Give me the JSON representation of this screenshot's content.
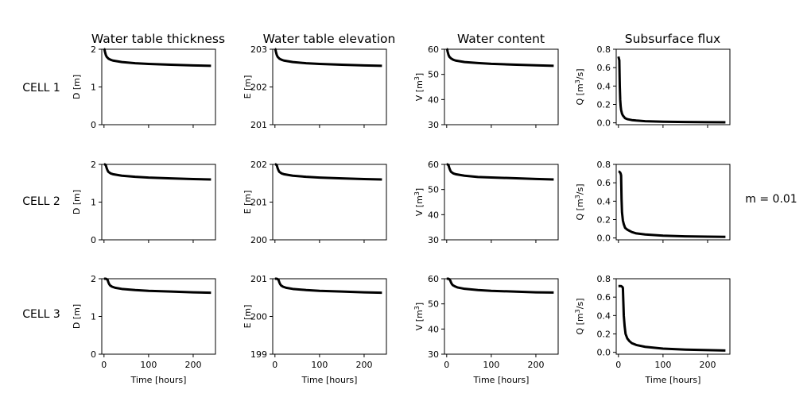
{
  "figure": {
    "column_titles": [
      "Water table thickness",
      "Water table elevation",
      "Water content",
      "Subsurface flux"
    ],
    "row_labels": [
      "CELL 1",
      "CELL 2",
      "CELL 3"
    ],
    "side_label": "m = 0.01",
    "xlabel": "Time [hours]",
    "line_color": "#000000"
  },
  "chart_data": [
    {
      "type": "line",
      "row": 1,
      "col": 1,
      "ylabel": "D [m]",
      "ylim": [
        0,
        2
      ],
      "yticks": [
        "0",
        "1",
        "2"
      ],
      "xlim": [
        -5,
        250
      ],
      "xticks": [
        "0",
        "100",
        "200"
      ],
      "series": [
        {
          "x": [
            0,
            1,
            2,
            4,
            6,
            10,
            15,
            20,
            40,
            70,
            100,
            150,
            200,
            240
          ],
          "y": [
            2.0,
            2.0,
            1.94,
            1.85,
            1.8,
            1.75,
            1.72,
            1.7,
            1.66,
            1.63,
            1.61,
            1.59,
            1.57,
            1.56
          ]
        }
      ]
    },
    {
      "type": "line",
      "row": 1,
      "col": 2,
      "ylabel": "E [m]",
      "ylim": [
        201,
        203
      ],
      "yticks": [
        "201",
        "202",
        "203"
      ],
      "xlim": [
        -5,
        250
      ],
      "xticks": [
        "0",
        "100",
        "200"
      ],
      "series": [
        {
          "x": [
            0,
            1,
            2,
            4,
            6,
            10,
            15,
            20,
            40,
            70,
            100,
            150,
            200,
            240
          ],
          "y": [
            203.0,
            203.0,
            202.94,
            202.85,
            202.8,
            202.75,
            202.72,
            202.7,
            202.66,
            202.63,
            202.61,
            202.59,
            202.57,
            202.56
          ]
        }
      ]
    },
    {
      "type": "line",
      "row": 1,
      "col": 3,
      "ylabel": "V [m$^3$]",
      "ylim": [
        30,
        60
      ],
      "yticks": [
        "30",
        "40",
        "50",
        "60"
      ],
      "xlim": [
        -5,
        250
      ],
      "xticks": [
        "0",
        "100",
        "200"
      ],
      "series": [
        {
          "x": [
            0,
            1,
            2,
            4,
            6,
            10,
            15,
            20,
            40,
            70,
            100,
            150,
            200,
            240
          ],
          "y": [
            60.0,
            60.0,
            59.1,
            57.8,
            57.0,
            56.3,
            55.8,
            55.5,
            54.9,
            54.5,
            54.2,
            53.9,
            53.6,
            53.4
          ]
        }
      ]
    },
    {
      "type": "line",
      "row": 1,
      "col": 4,
      "ylabel": "Q [m$^3$/s]",
      "ylim": [
        -0.02,
        0.8
      ],
      "yticks": [
        "0.0",
        "0.2",
        "0.4",
        "0.6",
        "0.8"
      ],
      "xlim": [
        -5,
        250
      ],
      "xticks": [
        "0",
        "100",
        "200"
      ],
      "series": [
        {
          "x": [
            0,
            1,
            2,
            3,
            4,
            5,
            6,
            8,
            10,
            15,
            20,
            30,
            40,
            60,
            100,
            150,
            200,
            240
          ],
          "y": [
            0.72,
            0.7,
            0.68,
            0.4,
            0.25,
            0.18,
            0.14,
            0.1,
            0.08,
            0.05,
            0.04,
            0.03,
            0.025,
            0.018,
            0.012,
            0.009,
            0.007,
            0.006
          ]
        }
      ]
    },
    {
      "type": "line",
      "row": 2,
      "col": 1,
      "ylabel": "D [m]",
      "ylim": [
        0,
        2
      ],
      "yticks": [
        "0",
        "1",
        "2"
      ],
      "xlim": [
        -5,
        250
      ],
      "xticks": [
        "0",
        "100",
        "200"
      ],
      "series": [
        {
          "x": [
            0,
            2,
            4,
            6,
            8,
            10,
            15,
            20,
            40,
            70,
            100,
            150,
            200,
            240
          ],
          "y": [
            2.0,
            2.0,
            1.98,
            1.9,
            1.84,
            1.8,
            1.76,
            1.74,
            1.7,
            1.67,
            1.65,
            1.63,
            1.61,
            1.6
          ]
        }
      ]
    },
    {
      "type": "line",
      "row": 2,
      "col": 2,
      "ylabel": "E [m]",
      "ylim": [
        200,
        202
      ],
      "yticks": [
        "200",
        "201",
        "202"
      ],
      "xlim": [
        -5,
        250
      ],
      "xticks": [
        "0",
        "100",
        "200"
      ],
      "series": [
        {
          "x": [
            0,
            2,
            4,
            6,
            8,
            10,
            15,
            20,
            40,
            70,
            100,
            150,
            200,
            240
          ],
          "y": [
            202.0,
            202.0,
            201.98,
            201.9,
            201.84,
            201.8,
            201.76,
            201.74,
            201.7,
            201.67,
            201.65,
            201.63,
            201.61,
            201.6
          ]
        }
      ]
    },
    {
      "type": "line",
      "row": 2,
      "col": 3,
      "ylabel": "V [m$^3$]",
      "ylim": [
        30,
        60
      ],
      "yticks": [
        "30",
        "40",
        "50",
        "60"
      ],
      "xlim": [
        -5,
        250
      ],
      "xticks": [
        "0",
        "100",
        "200"
      ],
      "series": [
        {
          "x": [
            0,
            2,
            4,
            6,
            8,
            10,
            15,
            20,
            40,
            70,
            100,
            150,
            200,
            240
          ],
          "y": [
            60.0,
            60.0,
            59.7,
            58.5,
            57.6,
            57.0,
            56.4,
            56.1,
            55.5,
            55.0,
            54.8,
            54.5,
            54.2,
            54.0
          ]
        }
      ]
    },
    {
      "type": "line",
      "row": 2,
      "col": 4,
      "ylabel": "Q [m$^3$/s]",
      "ylim": [
        -0.02,
        0.8
      ],
      "yticks": [
        "0.0",
        "0.2",
        "0.4",
        "0.6",
        "0.8"
      ],
      "xlim": [
        -5,
        250
      ],
      "xticks": [
        "0",
        "100",
        "200"
      ],
      "series": [
        {
          "x": [
            0,
            2,
            4,
            5,
            6,
            7,
            8,
            10,
            12,
            15,
            20,
            30,
            40,
            60,
            100,
            150,
            200,
            240
          ],
          "y": [
            0.72,
            0.72,
            0.71,
            0.7,
            0.68,
            0.42,
            0.28,
            0.19,
            0.15,
            0.11,
            0.09,
            0.065,
            0.05,
            0.038,
            0.025,
            0.018,
            0.014,
            0.012
          ]
        }
      ]
    },
    {
      "type": "line",
      "row": 3,
      "col": 1,
      "ylabel": "D [m]",
      "ylim": [
        0,
        2
      ],
      "yticks": [
        "0",
        "1",
        "2"
      ],
      "xlim": [
        -5,
        250
      ],
      "xticks": [
        "0",
        "100",
        "200"
      ],
      "series": [
        {
          "x": [
            0,
            4,
            6,
            8,
            10,
            12,
            14,
            18,
            25,
            40,
            70,
            100,
            150,
            200,
            240
          ],
          "y": [
            2.0,
            2.0,
            1.99,
            1.97,
            1.9,
            1.85,
            1.82,
            1.79,
            1.76,
            1.73,
            1.7,
            1.68,
            1.66,
            1.64,
            1.63
          ]
        }
      ]
    },
    {
      "type": "line",
      "row": 3,
      "col": 2,
      "ylabel": "E [m]",
      "ylim": [
        199,
        201
      ],
      "yticks": [
        "199",
        "200",
        "201"
      ],
      "xlim": [
        -5,
        250
      ],
      "xticks": [
        "0",
        "100",
        "200"
      ],
      "series": [
        {
          "x": [
            0,
            4,
            6,
            8,
            10,
            12,
            14,
            18,
            25,
            40,
            70,
            100,
            150,
            200,
            240
          ],
          "y": [
            201.0,
            201.0,
            200.99,
            200.97,
            200.9,
            200.85,
            200.82,
            200.79,
            200.76,
            200.73,
            200.7,
            200.68,
            200.66,
            200.64,
            200.63
          ]
        }
      ]
    },
    {
      "type": "line",
      "row": 3,
      "col": 3,
      "ylabel": "V [m$^3$]",
      "ylim": [
        30,
        60
      ],
      "yticks": [
        "30",
        "40",
        "50",
        "60"
      ],
      "xlim": [
        -5,
        250
      ],
      "xticks": [
        "0",
        "100",
        "200"
      ],
      "series": [
        {
          "x": [
            0,
            4,
            6,
            8,
            10,
            12,
            14,
            18,
            25,
            40,
            70,
            100,
            150,
            200,
            240
          ],
          "y": [
            60.0,
            60.0,
            59.8,
            59.3,
            58.4,
            57.8,
            57.4,
            57.0,
            56.5,
            56.0,
            55.5,
            55.2,
            54.9,
            54.6,
            54.5
          ]
        }
      ]
    },
    {
      "type": "line",
      "row": 3,
      "col": 4,
      "ylabel": "Q [m$^3$/s]",
      "ylim": [
        -0.02,
        0.8
      ],
      "yticks": [
        "0.0",
        "0.2",
        "0.4",
        "0.6",
        "0.8"
      ],
      "xlim": [
        -5,
        250
      ],
      "xticks": [
        "0",
        "100",
        "200"
      ],
      "series": [
        {
          "x": [
            0,
            3,
            6,
            9,
            10,
            11,
            12,
            14,
            16,
            20,
            25,
            30,
            40,
            60,
            100,
            150,
            200,
            240
          ],
          "y": [
            0.72,
            0.72,
            0.72,
            0.71,
            0.7,
            0.55,
            0.4,
            0.28,
            0.2,
            0.15,
            0.12,
            0.1,
            0.08,
            0.06,
            0.04,
            0.03,
            0.024,
            0.02
          ]
        }
      ]
    }
  ]
}
